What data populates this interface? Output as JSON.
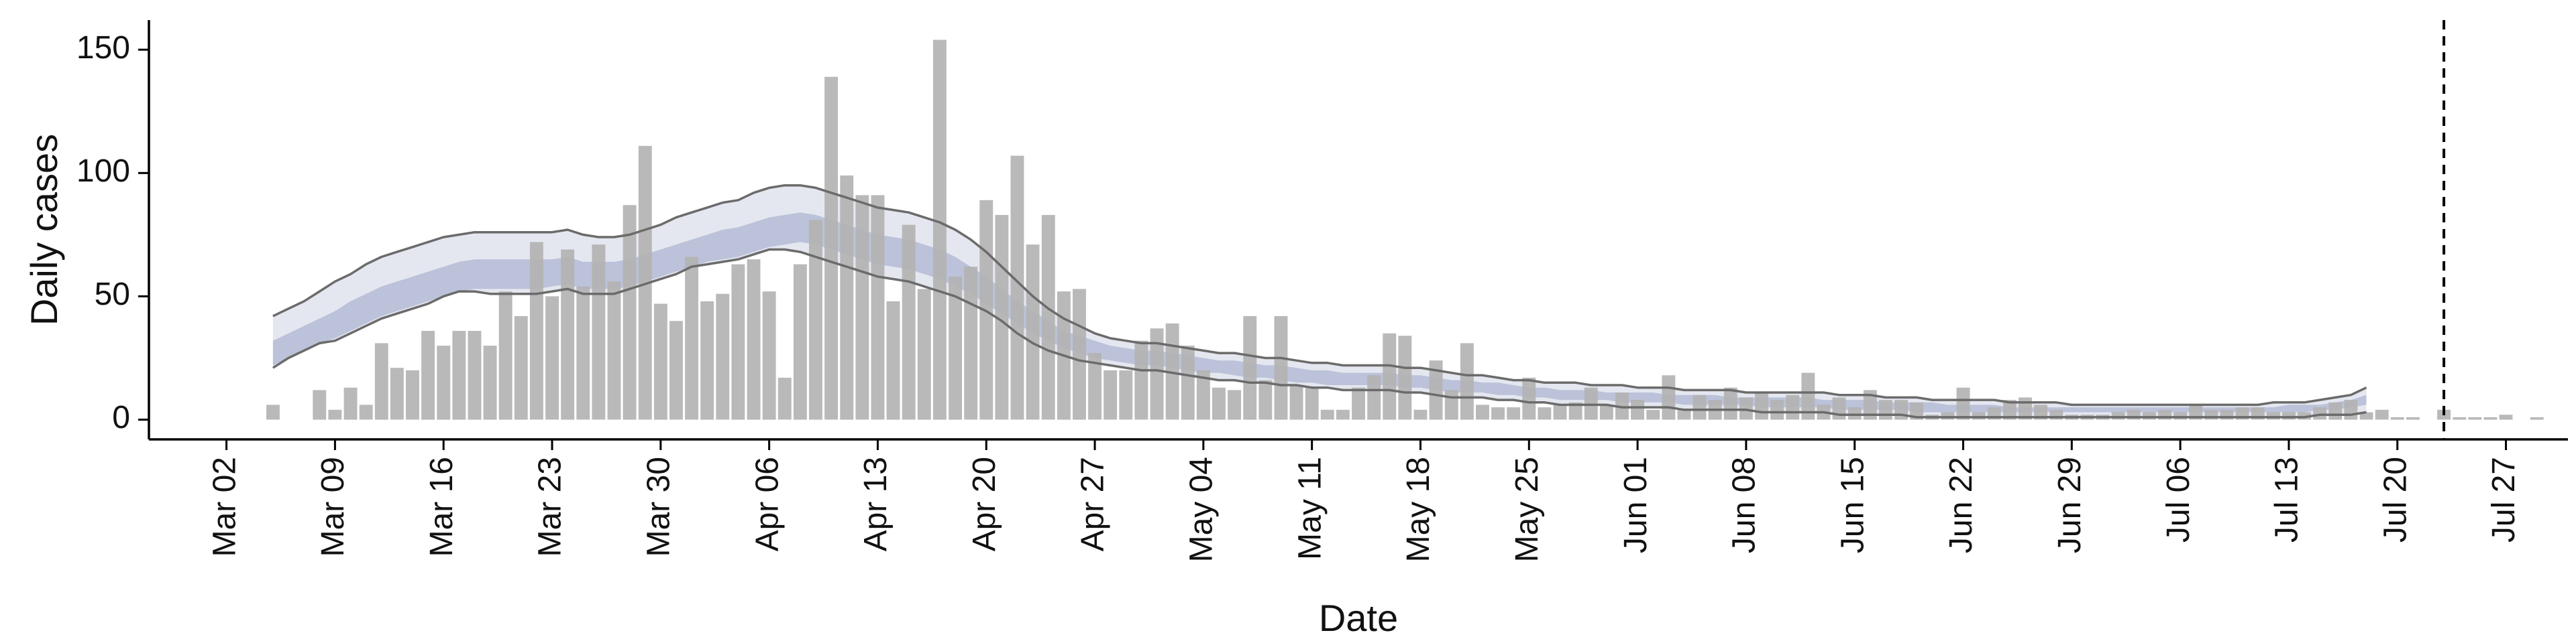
{
  "chart_data": {
    "type": "bar",
    "xlabel": "Date",
    "ylabel": "Daily cases",
    "x_axis_type": "date",
    "xlim": [
      "2020-02-26",
      "2020-07-31"
    ],
    "ylim": [
      -8,
      162
    ],
    "x_ticks": [
      {
        "date": "2020-03-02",
        "label": "Mar 02"
      },
      {
        "date": "2020-03-09",
        "label": "Mar 09"
      },
      {
        "date": "2020-03-16",
        "label": "Mar 16"
      },
      {
        "date": "2020-03-23",
        "label": "Mar 23"
      },
      {
        "date": "2020-03-30",
        "label": "Mar 30"
      },
      {
        "date": "2020-04-06",
        "label": "Apr 06"
      },
      {
        "date": "2020-04-13",
        "label": "Apr 13"
      },
      {
        "date": "2020-04-20",
        "label": "Apr 20"
      },
      {
        "date": "2020-04-27",
        "label": "Apr 27"
      },
      {
        "date": "2020-05-04",
        "label": "May 04"
      },
      {
        "date": "2020-05-11",
        "label": "May 11"
      },
      {
        "date": "2020-05-18",
        "label": "May 18"
      },
      {
        "date": "2020-05-25",
        "label": "May 25"
      },
      {
        "date": "2020-06-01",
        "label": "Jun 01"
      },
      {
        "date": "2020-06-08",
        "label": "Jun 08"
      },
      {
        "date": "2020-06-15",
        "label": "Jun 15"
      },
      {
        "date": "2020-06-22",
        "label": "Jun 22"
      },
      {
        "date": "2020-06-29",
        "label": "Jun 29"
      },
      {
        "date": "2020-07-06",
        "label": "Jul 06"
      },
      {
        "date": "2020-07-13",
        "label": "Jul 13"
      },
      {
        "date": "2020-07-20",
        "label": "Jul 20"
      },
      {
        "date": "2020-07-27",
        "label": "Jul 27"
      }
    ],
    "y_ticks": [
      0,
      50,
      100,
      150
    ],
    "grid": false,
    "vline_date": "2020-07-23",
    "vline_style": "dashed",
    "colors": {
      "bars": "#b3b3b3",
      "band_outer": "#dcdfeb",
      "band_inner": "#a9b2cf",
      "band_lines": "#6b6b6b",
      "axis": "#000000",
      "vline": "#000000"
    },
    "series": [
      {
        "kind": "bars",
        "start_date": "2020-03-05",
        "values": [
          6,
          0,
          0,
          12,
          4,
          13,
          6,
          31,
          21,
          20,
          36,
          30,
          36,
          36,
          30,
          52,
          42,
          72,
          50,
          69,
          54,
          71,
          56,
          87,
          111,
          47,
          40,
          66,
          48,
          51,
          63,
          65,
          52,
          17,
          63,
          81,
          139,
          99,
          91,
          91,
          48,
          79,
          53,
          154,
          58,
          62,
          89,
          83,
          107,
          71,
          83,
          52,
          53,
          27,
          20,
          20,
          32,
          37,
          39,
          30,
          20,
          13,
          12,
          42,
          16,
          42,
          14,
          13,
          4,
          4,
          13,
          18,
          35,
          34,
          4,
          24,
          12,
          31,
          6,
          5,
          5,
          17,
          5,
          6,
          7,
          13,
          6,
          11,
          8,
          4,
          18,
          4,
          10,
          8,
          13,
          9,
          11,
          8,
          10,
          19,
          6,
          9,
          5,
          12,
          8,
          8,
          7,
          2,
          3,
          13,
          3,
          5,
          8,
          9,
          6,
          4,
          2,
          2,
          2,
          3,
          4,
          3,
          4,
          3,
          6,
          4,
          4,
          5,
          5,
          3,
          3,
          3,
          5,
          7,
          8,
          3,
          4,
          1,
          1,
          0,
          4,
          1,
          1,
          1,
          2,
          0,
          1,
          0,
          0
        ]
      },
      {
        "kind": "line",
        "name": "outer upper",
        "start_date": "2020-03-05",
        "values": [
          42,
          45,
          48,
          52,
          56,
          59,
          63,
          66,
          68,
          70,
          72,
          74,
          75,
          76,
          76,
          76,
          76,
          76,
          76,
          77,
          75,
          74,
          74,
          75,
          77,
          79,
          82,
          84,
          86,
          88,
          89,
          92,
          94,
          95,
          95,
          94,
          92,
          90,
          88,
          86,
          85,
          84,
          82,
          80,
          77,
          73,
          68,
          62,
          56,
          50,
          45,
          41,
          38,
          35,
          33,
          32,
          31,
          31,
          30,
          29,
          28,
          27,
          27,
          26,
          25,
          25,
          24,
          23,
          23,
          22,
          22,
          22,
          22,
          21,
          21,
          20,
          19,
          18,
          18,
          17,
          16,
          16,
          15,
          15,
          15,
          14,
          14,
          14,
          13,
          13,
          13,
          12,
          12,
          12,
          12,
          11,
          11,
          11,
          11,
          11,
          11,
          10,
          10,
          10,
          9,
          9,
          9,
          8,
          8,
          8,
          8,
          8,
          7,
          7,
          7,
          7,
          6,
          6,
          6,
          6,
          6,
          6,
          6,
          6,
          6,
          6,
          6,
          6,
          6,
          7,
          7,
          7,
          8,
          9,
          10,
          13
        ]
      },
      {
        "kind": "line",
        "name": "inner upper",
        "start_date": "2020-03-05",
        "values": [
          32,
          35,
          38,
          41,
          44,
          48,
          51,
          54,
          56,
          58,
          60,
          62,
          64,
          65,
          65,
          65,
          65,
          65,
          65,
          66,
          64,
          64,
          64,
          65,
          67,
          69,
          71,
          73,
          75,
          77,
          78,
          80,
          82,
          83,
          84,
          83,
          81,
          79,
          77,
          75,
          74,
          73,
          71,
          69,
          66,
          62,
          58,
          53,
          48,
          44,
          40,
          36,
          34,
          32,
          30,
          29,
          28,
          28,
          27,
          26,
          25,
          24,
          24,
          23,
          22,
          22,
          21,
          20,
          20,
          19,
          19,
          19,
          19,
          18,
          18,
          17,
          16,
          16,
          15,
          15,
          14,
          13,
          13,
          12,
          12,
          12,
          11,
          11,
          11,
          11,
          10,
          10,
          10,
          10,
          9,
          9,
          9,
          9,
          9,
          9,
          8,
          8,
          8,
          8,
          7,
          7,
          7,
          7,
          6,
          6,
          6,
          6,
          5,
          5,
          5,
          5,
          5,
          5,
          5,
          5,
          5,
          5,
          5,
          5,
          5,
          5,
          5,
          5,
          5,
          5,
          6,
          6,
          6,
          7,
          8,
          10
        ]
      },
      {
        "kind": "line",
        "name": "inner lower",
        "start_date": "2020-03-05",
        "values": [
          22,
          25,
          28,
          31,
          33,
          36,
          39,
          42,
          44,
          46,
          48,
          50,
          52,
          53,
          53,
          53,
          53,
          53,
          54,
          55,
          53,
          53,
          53,
          54,
          56,
          58,
          60,
          62,
          64,
          65,
          66,
          68,
          70,
          71,
          72,
          71,
          69,
          67,
          65,
          63,
          62,
          61,
          59,
          57,
          54,
          51,
          47,
          43,
          39,
          35,
          32,
          29,
          27,
          25,
          24,
          23,
          22,
          22,
          21,
          20,
          19,
          19,
          18,
          17,
          17,
          16,
          15,
          15,
          14,
          14,
          14,
          14,
          14,
          13,
          13,
          12,
          11,
          11,
          11,
          10,
          10,
          9,
          9,
          8,
          8,
          8,
          8,
          7,
          7,
          7,
          7,
          6,
          6,
          6,
          6,
          6,
          5,
          5,
          5,
          5,
          5,
          4,
          4,
          4,
          4,
          4,
          3,
          3,
          3,
          3,
          3,
          3,
          3,
          3,
          3,
          3,
          3,
          3,
          3,
          3,
          3,
          3,
          3,
          3,
          3,
          3,
          3,
          3,
          3,
          3,
          3,
          3,
          4,
          4,
          5,
          6
        ]
      },
      {
        "kind": "line",
        "name": "outer lower",
        "start_date": "2020-03-05",
        "values": [
          21,
          25,
          28,
          31,
          32,
          35,
          38,
          41,
          43,
          45,
          47,
          50,
          52,
          52,
          51,
          51,
          51,
          51,
          52,
          53,
          51,
          51,
          51,
          53,
          55,
          57,
          59,
          62,
          63,
          64,
          65,
          67,
          69,
          69,
          68,
          66,
          64,
          62,
          60,
          58,
          57,
          56,
          54,
          52,
          50,
          47,
          44,
          40,
          35,
          31,
          28,
          26,
          24,
          23,
          22,
          21,
          20,
          20,
          19,
          18,
          17,
          16,
          16,
          15,
          15,
          14,
          14,
          13,
          13,
          12,
          12,
          12,
          12,
          11,
          11,
          10,
          9,
          9,
          9,
          8,
          8,
          7,
          7,
          6,
          6,
          6,
          6,
          5,
          5,
          5,
          5,
          4,
          4,
          4,
          4,
          4,
          3,
          3,
          3,
          3,
          3,
          2,
          2,
          2,
          2,
          2,
          1,
          1,
          1,
          1,
          1,
          1,
          1,
          1,
          1,
          1,
          1,
          1,
          1,
          1,
          1,
          1,
          1,
          1,
          1,
          1,
          1,
          1,
          1,
          1,
          1,
          1,
          2,
          2,
          2,
          3
        ]
      }
    ]
  }
}
